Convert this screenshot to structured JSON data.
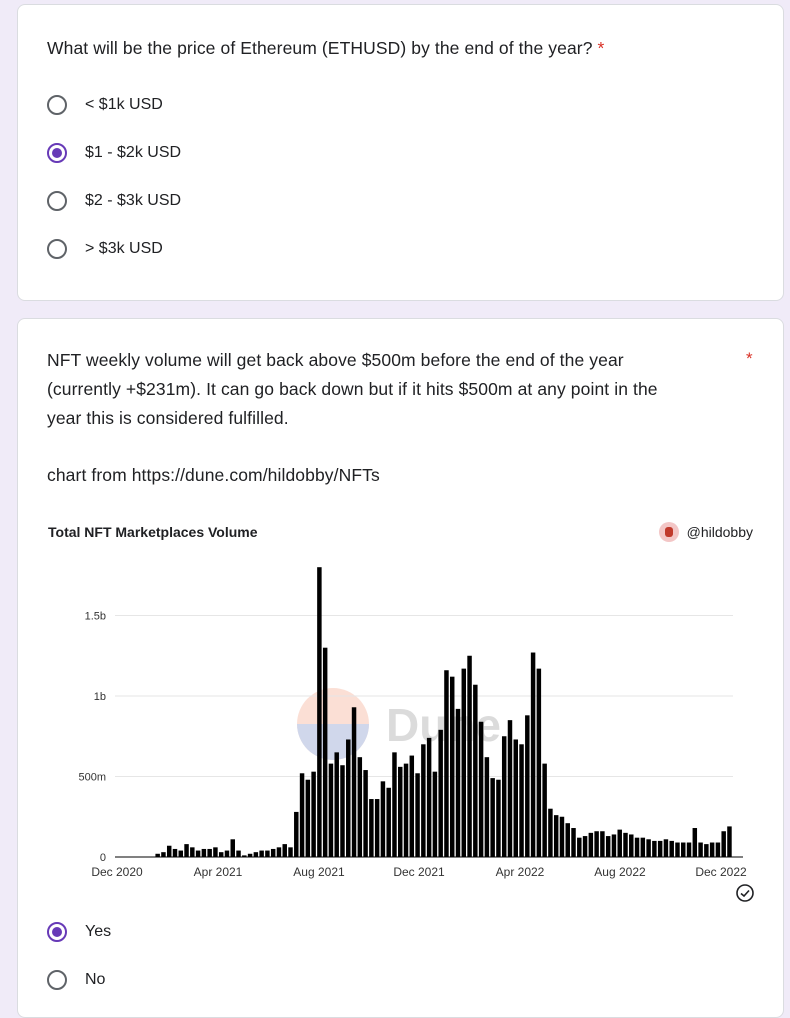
{
  "q1": {
    "title": "What will be the price of Ethereum (ETHUSD) by the end of the year?",
    "required_mark": "*",
    "options": [
      "< $1k USD",
      "$1 - $2k USD",
      "$2 - $3k USD",
      "> $3k USD"
    ],
    "selected_index": 1
  },
  "q2": {
    "title_lines": [
      "NFT weekly volume will get back above $500m before the end of the year",
      "(currently +$231m). It can go back down but if it hits $500m at any point in the",
      "year this is considered fulfilled."
    ],
    "required_mark": "*",
    "source_line": "chart from https://dune.com/hildobby/NFTs",
    "options": [
      "Yes",
      "No"
    ],
    "selected_index": 0
  },
  "chart": {
    "title": "Total NFT Marketplaces Volume",
    "author": "@hildobby",
    "watermark": "Dune"
  },
  "chart_data": {
    "type": "bar",
    "title": "Total NFT Marketplaces Volume",
    "xlabel": "",
    "ylabel": "",
    "ylim": [
      0,
      1.8
    ],
    "unit": "billions USD",
    "y_ticks": [
      "0",
      "500m",
      "1b",
      "1.5b"
    ],
    "y_tick_values": [
      0,
      0.5,
      1.0,
      1.5
    ],
    "x_ticks": [
      "Dec 2020",
      "Apr 2021",
      "Aug 2021",
      "Dec 2021",
      "Apr 2022",
      "Aug 2022",
      "Dec 2022"
    ],
    "grid": true,
    "bar_color": "#000000",
    "values": [
      0.0,
      0.0,
      0.0,
      0.0,
      0.0,
      0.0,
      0.0,
      0.02,
      0.03,
      0.07,
      0.05,
      0.04,
      0.08,
      0.06,
      0.04,
      0.05,
      0.05,
      0.06,
      0.03,
      0.04,
      0.11,
      0.04,
      0.01,
      0.02,
      0.03,
      0.04,
      0.04,
      0.05,
      0.06,
      0.08,
      0.06,
      0.28,
      0.52,
      0.48,
      0.53,
      1.8,
      1.3,
      0.58,
      0.65,
      0.57,
      0.73,
      0.93,
      0.62,
      0.54,
      0.36,
      0.36,
      0.47,
      0.43,
      0.65,
      0.56,
      0.58,
      0.63,
      0.52,
      0.7,
      0.74,
      0.53,
      0.79,
      1.16,
      1.12,
      0.92,
      1.17,
      1.25,
      1.07,
      0.84,
      0.62,
      0.49,
      0.48,
      0.75,
      0.85,
      0.73,
      0.7,
      0.88,
      1.27,
      1.17,
      0.58,
      0.3,
      0.26,
      0.25,
      0.21,
      0.18,
      0.12,
      0.13,
      0.15,
      0.16,
      0.16,
      0.13,
      0.14,
      0.17,
      0.15,
      0.14,
      0.12,
      0.12,
      0.11,
      0.1,
      0.1,
      0.11,
      0.1,
      0.09,
      0.09,
      0.09,
      0.18,
      0.09,
      0.08,
      0.09,
      0.09,
      0.16,
      0.19
    ]
  }
}
